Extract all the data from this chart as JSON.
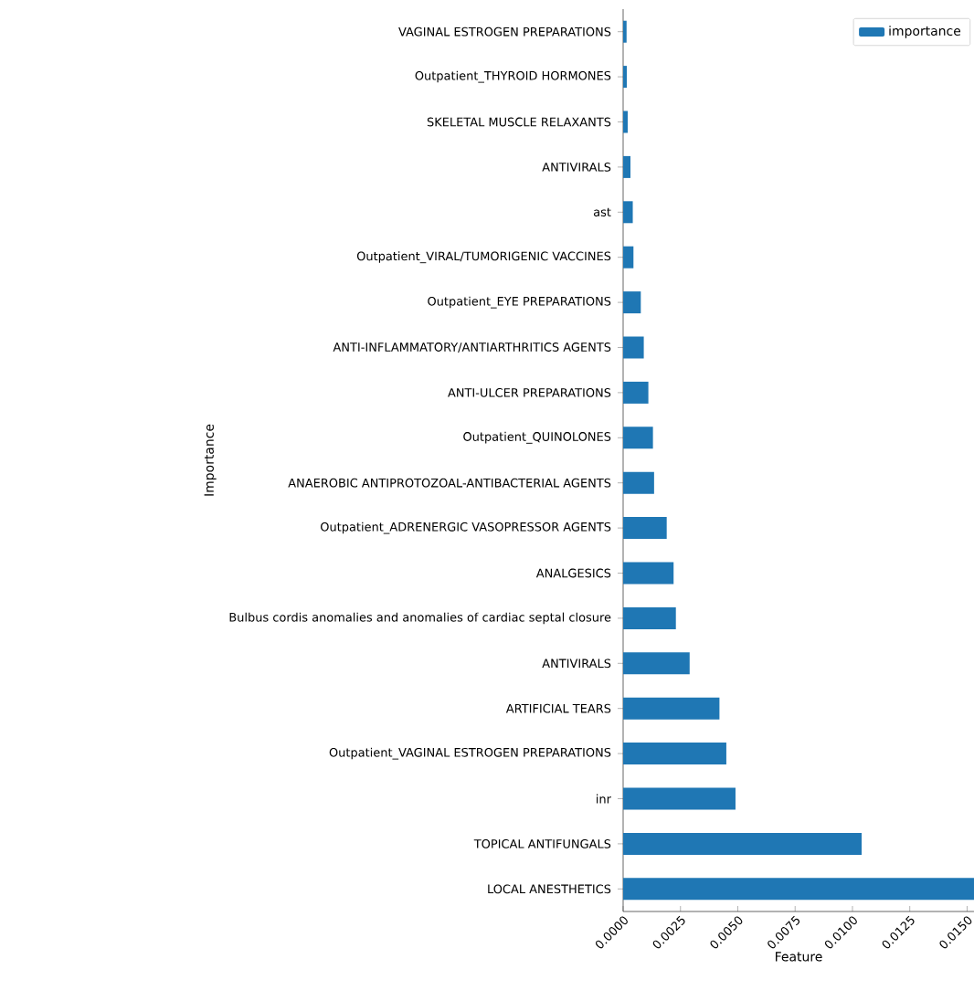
{
  "chart_data": {
    "type": "bar",
    "orientation": "horizontal",
    "xlabel": "Feature",
    "ylabel": "Importance",
    "categories": [
      "VAGINAL ESTROGEN PREPARATIONS",
      "Outpatient_THYROID HORMONES",
      "SKELETAL MUSCLE RELAXANTS",
      "ANTIVIRALS",
      "ast",
      "Outpatient_VIRAL/TUMORIGENIC VACCINES",
      "Outpatient_EYE PREPARATIONS",
      "ANTI-INFLAMMATORY/ANTIARTHRITICS AGENTS",
      "ANTI-ULCER PREPARATIONS",
      "Outpatient_QUINOLONES",
      "ANAEROBIC ANTIPROTOZOAL-ANTIBACTERIAL AGENTS",
      "Outpatient_ADRENERGIC VASOPRESSOR AGENTS",
      "ANALGESICS",
      "Bulbus cordis anomalies and anomalies of cardiac septal closure",
      "ANTIVIRALS",
      "ARTIFICIAL TEARS",
      "Outpatient_VAGINAL ESTROGEN PREPARATIONS",
      "inr",
      "TOPICAL ANTIFUNGALS",
      "LOCAL ANESTHETICS"
    ],
    "series": [
      {
        "name": "importance",
        "color": "#1f77b4",
        "values": [
          0.00015,
          0.00016,
          0.0002,
          0.00032,
          0.00042,
          0.00045,
          0.00077,
          0.0009,
          0.0011,
          0.0013,
          0.00135,
          0.0019,
          0.0022,
          0.0023,
          0.0029,
          0.0042,
          0.0045,
          0.0049,
          0.0104,
          0.0153
        ]
      }
    ],
    "xlim": [
      0,
      0.0153
    ],
    "xticks": [
      {
        "value": 0,
        "label": "0.0000"
      },
      {
        "value": 0.0025,
        "label": "0.0025"
      },
      {
        "value": 0.005,
        "label": "0.0050"
      },
      {
        "value": 0.0075,
        "label": "0.0075"
      },
      {
        "value": 0.01,
        "label": "0.0100"
      },
      {
        "value": 0.0125,
        "label": "0.0125"
      },
      {
        "value": 0.015,
        "label": "0.0150"
      }
    ],
    "legend": "top right",
    "grid": false
  }
}
